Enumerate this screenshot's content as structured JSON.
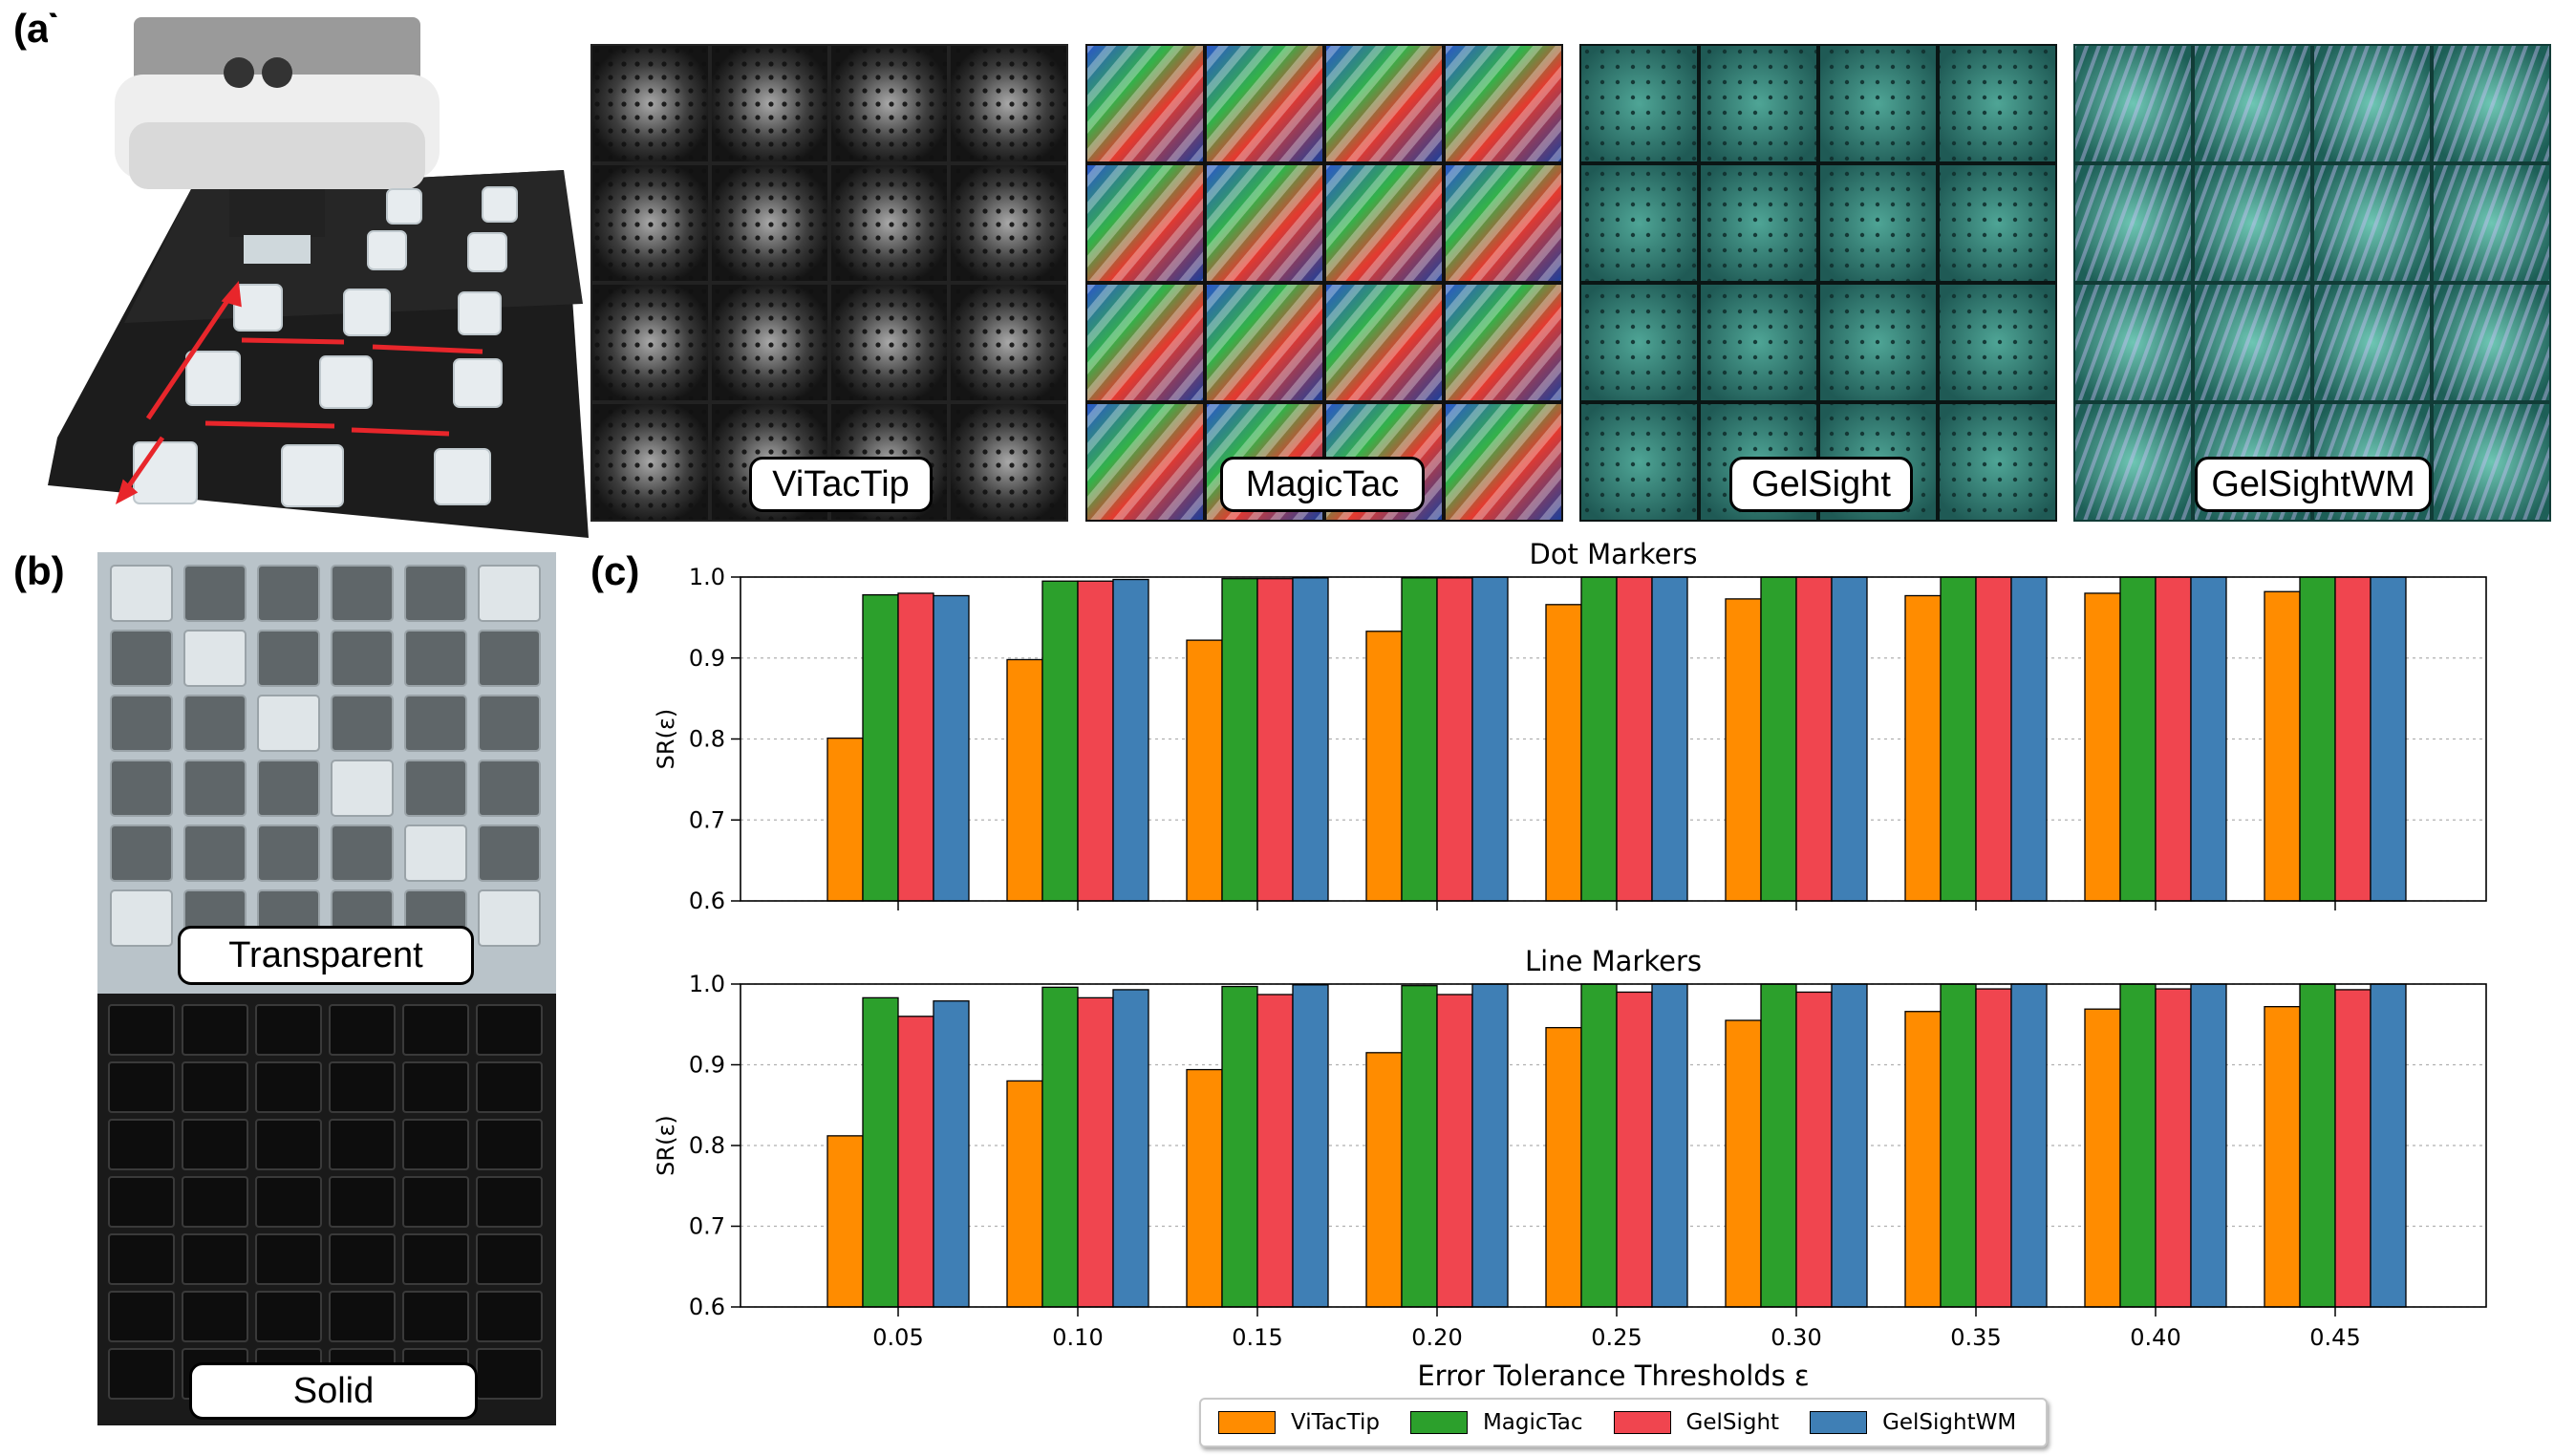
{
  "panels": {
    "a": "(a)",
    "b": "(b)",
    "c": "(c)"
  },
  "sensors": [
    {
      "label": "ViTacTip",
      "style": "gray"
    },
    {
      "label": "MagicTac",
      "style": "rainbow"
    },
    {
      "label": "GelSight",
      "style": "teal-dots"
    },
    {
      "label": "GelSightWM",
      "style": "teal-lines"
    }
  ],
  "materials": {
    "transparent": "Transparent",
    "solid": "Solid"
  },
  "colors": {
    "ViTacTip": "#ff8c00",
    "MagicTac": "#2ca02c",
    "GelSight": "#f0454f",
    "GelSightWM": "#3f7fb5"
  },
  "chart_data": [
    {
      "type": "bar",
      "title": "Dot Markers",
      "ylabel": "SR(ε)",
      "xlabel": "",
      "ylim": [
        0.6,
        1.0
      ],
      "yticks": [
        "0.6",
        "0.7",
        "0.8",
        "0.9",
        "1.0"
      ],
      "categories": [
        "0.05",
        "0.10",
        "0.15",
        "0.20",
        "0.25",
        "0.30",
        "0.35",
        "0.40",
        "0.45"
      ],
      "grid": "y-dotted",
      "series": [
        {
          "name": "ViTacTip",
          "values": [
            0.801,
            0.898,
            0.922,
            0.933,
            0.966,
            0.973,
            0.977,
            0.98,
            0.982
          ]
        },
        {
          "name": "MagicTac",
          "values": [
            0.978,
            0.995,
            0.998,
            0.999,
            1.0,
            1.0,
            1.0,
            1.0,
            1.0
          ]
        },
        {
          "name": "GelSight",
          "values": [
            0.98,
            0.995,
            0.998,
            0.999,
            1.0,
            1.0,
            1.0,
            1.0,
            1.0
          ]
        },
        {
          "name": "GelSightWM",
          "values": [
            0.977,
            0.997,
            0.999,
            1.0,
            1.0,
            1.0,
            1.0,
            1.0,
            1.0
          ]
        }
      ]
    },
    {
      "type": "bar",
      "title": "Line Markers",
      "ylabel": "SR(ε)",
      "xlabel": "Error Tolerance Thresholds ε",
      "ylim": [
        0.6,
        1.0
      ],
      "yticks": [
        "0.6",
        "0.7",
        "0.8",
        "0.9",
        "1.0"
      ],
      "categories": [
        "0.05",
        "0.10",
        "0.15",
        "0.20",
        "0.25",
        "0.30",
        "0.35",
        "0.40",
        "0.45"
      ],
      "grid": "y-dotted",
      "series": [
        {
          "name": "ViTacTip",
          "values": [
            0.812,
            0.88,
            0.894,
            0.915,
            0.946,
            0.955,
            0.966,
            0.969,
            0.972
          ]
        },
        {
          "name": "MagicTac",
          "values": [
            0.983,
            0.996,
            0.997,
            0.998,
            1.0,
            1.0,
            1.0,
            1.0,
            1.0
          ]
        },
        {
          "name": "GelSight",
          "values": [
            0.96,
            0.983,
            0.987,
            0.987,
            0.99,
            0.99,
            0.994,
            0.994,
            0.993
          ]
        },
        {
          "name": "GelSightWM",
          "values": [
            0.979,
            0.993,
            0.999,
            1.0,
            1.0,
            1.0,
            1.0,
            1.0,
            1.0
          ]
        }
      ]
    }
  ],
  "legend": {
    "placement": "bottom-center",
    "items": [
      "ViTacTip",
      "MagicTac",
      "GelSight",
      "GelSightWM"
    ]
  }
}
